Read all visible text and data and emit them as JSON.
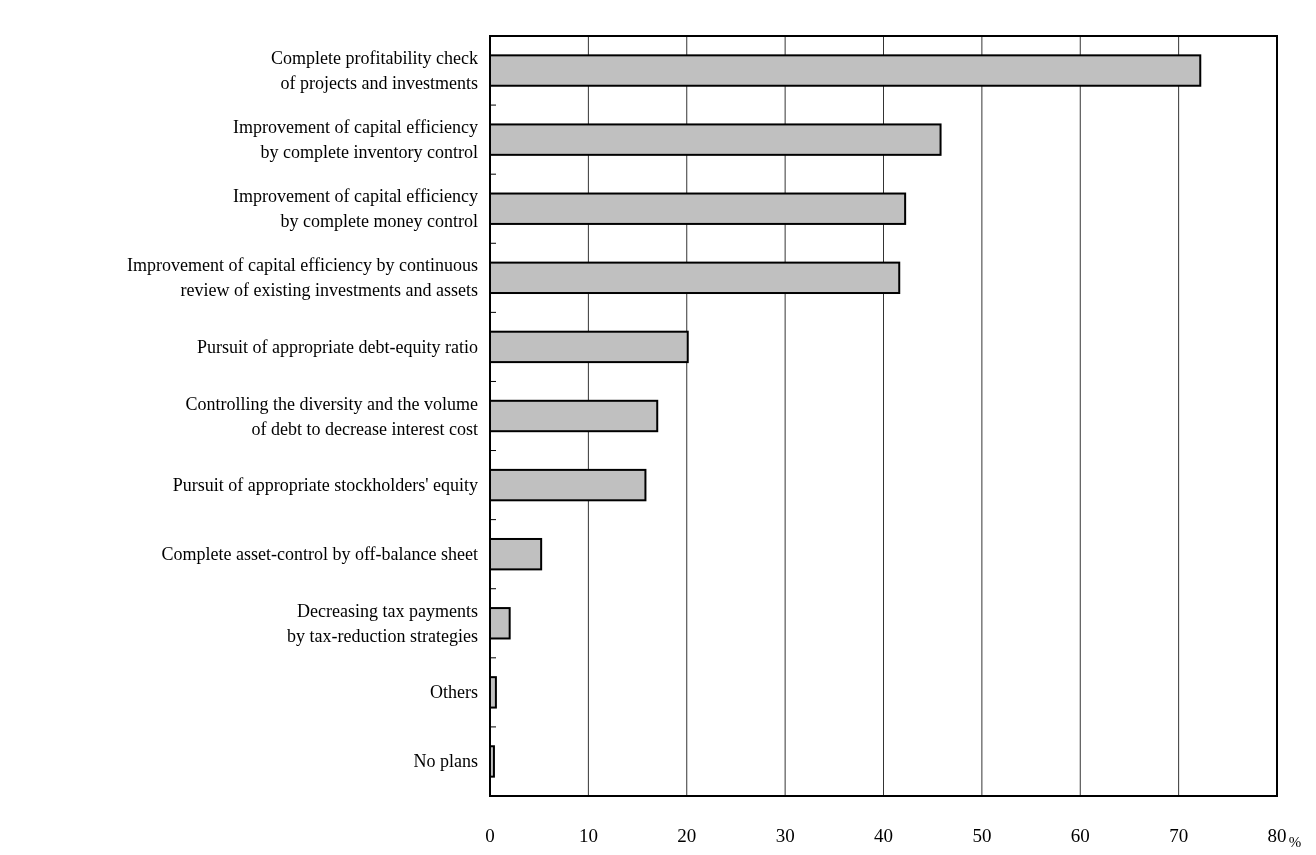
{
  "chart_data": {
    "type": "bar",
    "orientation": "horizontal",
    "xlabel": "%",
    "categories": [
      "Complete profitability check\nof projects and investments",
      "Improvement of capital efficiency\nby complete inventory control",
      "Improvement of capital efficiency\nby complete money control",
      "Improvement of capital efficiency by continuous\nreview of existing investments and assets",
      "Pursuit of appropriate debt-equity ratio",
      "Controlling the diversity and the volume\nof debt to decrease interest cost",
      "Pursuit of appropriate stockholders' equity",
      "Complete asset-control by off-balance sheet",
      "Decreasing tax payments\nby tax-reduction strategies",
      "Others",
      "No plans"
    ],
    "values": [
      72.2,
      45.8,
      42.2,
      41.6,
      20.1,
      17.0,
      15.8,
      5.2,
      2.0,
      0.6,
      0.4
    ],
    "color": "#c0c0c0",
    "xlim": [
      0,
      80
    ],
    "xticks": [
      0,
      10,
      20,
      30,
      40,
      50,
      60,
      70,
      80
    ],
    "grid": "x"
  }
}
